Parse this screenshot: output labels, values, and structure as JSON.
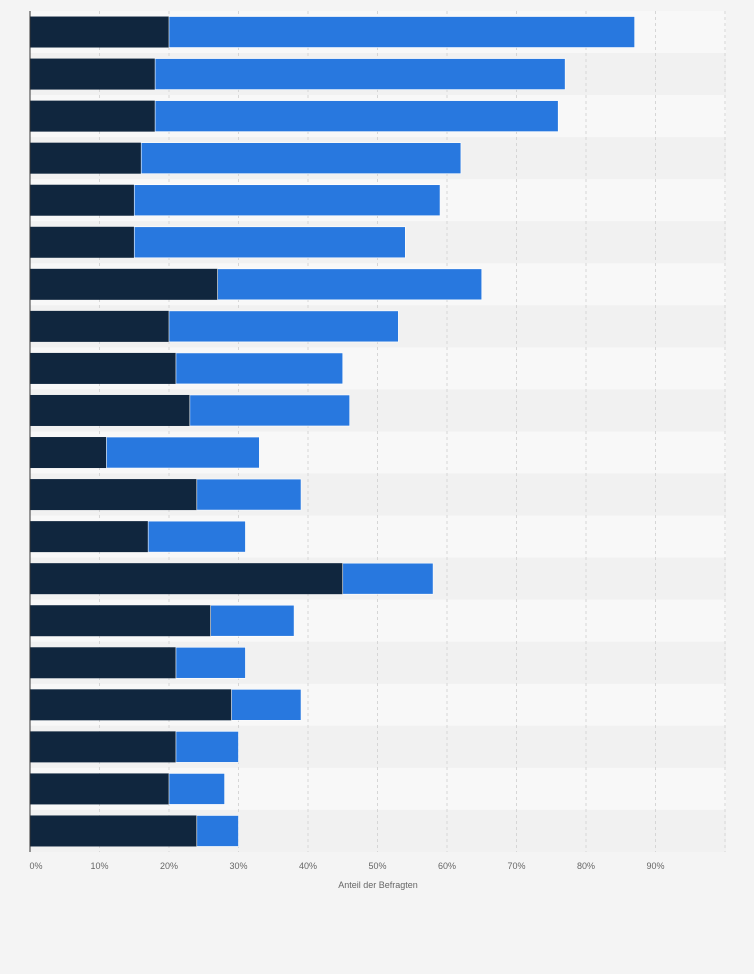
{
  "chart_data": {
    "type": "bar",
    "orientation": "horizontal",
    "stacked": true,
    "title": "",
    "xlabel": "Anteil der Befragten",
    "ylabel": "",
    "xlim": [
      0,
      100
    ],
    "x_ticks": [
      "0%",
      "10%",
      "20%",
      "30%",
      "40%",
      "50%",
      "60%",
      "70%",
      "80%",
      "90%"
    ],
    "grid": true,
    "legend": "none",
    "categories": [
      "",
      "",
      "",
      "",
      "",
      "",
      "",
      "",
      "",
      "",
      "",
      "",
      "",
      "",
      "",
      "",
      "",
      "",
      "",
      ""
    ],
    "series": [
      {
        "color": "#10263e",
        "values": [
          20,
          18,
          18,
          16,
          15,
          15,
          27,
          20,
          21,
          23,
          11,
          24,
          17,
          45,
          26,
          21,
          29,
          21,
          20,
          24
        ]
      },
      {
        "color": "#2878df",
        "values": [
          67,
          59,
          58,
          46,
          44,
          39,
          38,
          33,
          24,
          23,
          22,
          15,
          14,
          13,
          12,
          10,
          10,
          9,
          8,
          6
        ]
      }
    ]
  }
}
